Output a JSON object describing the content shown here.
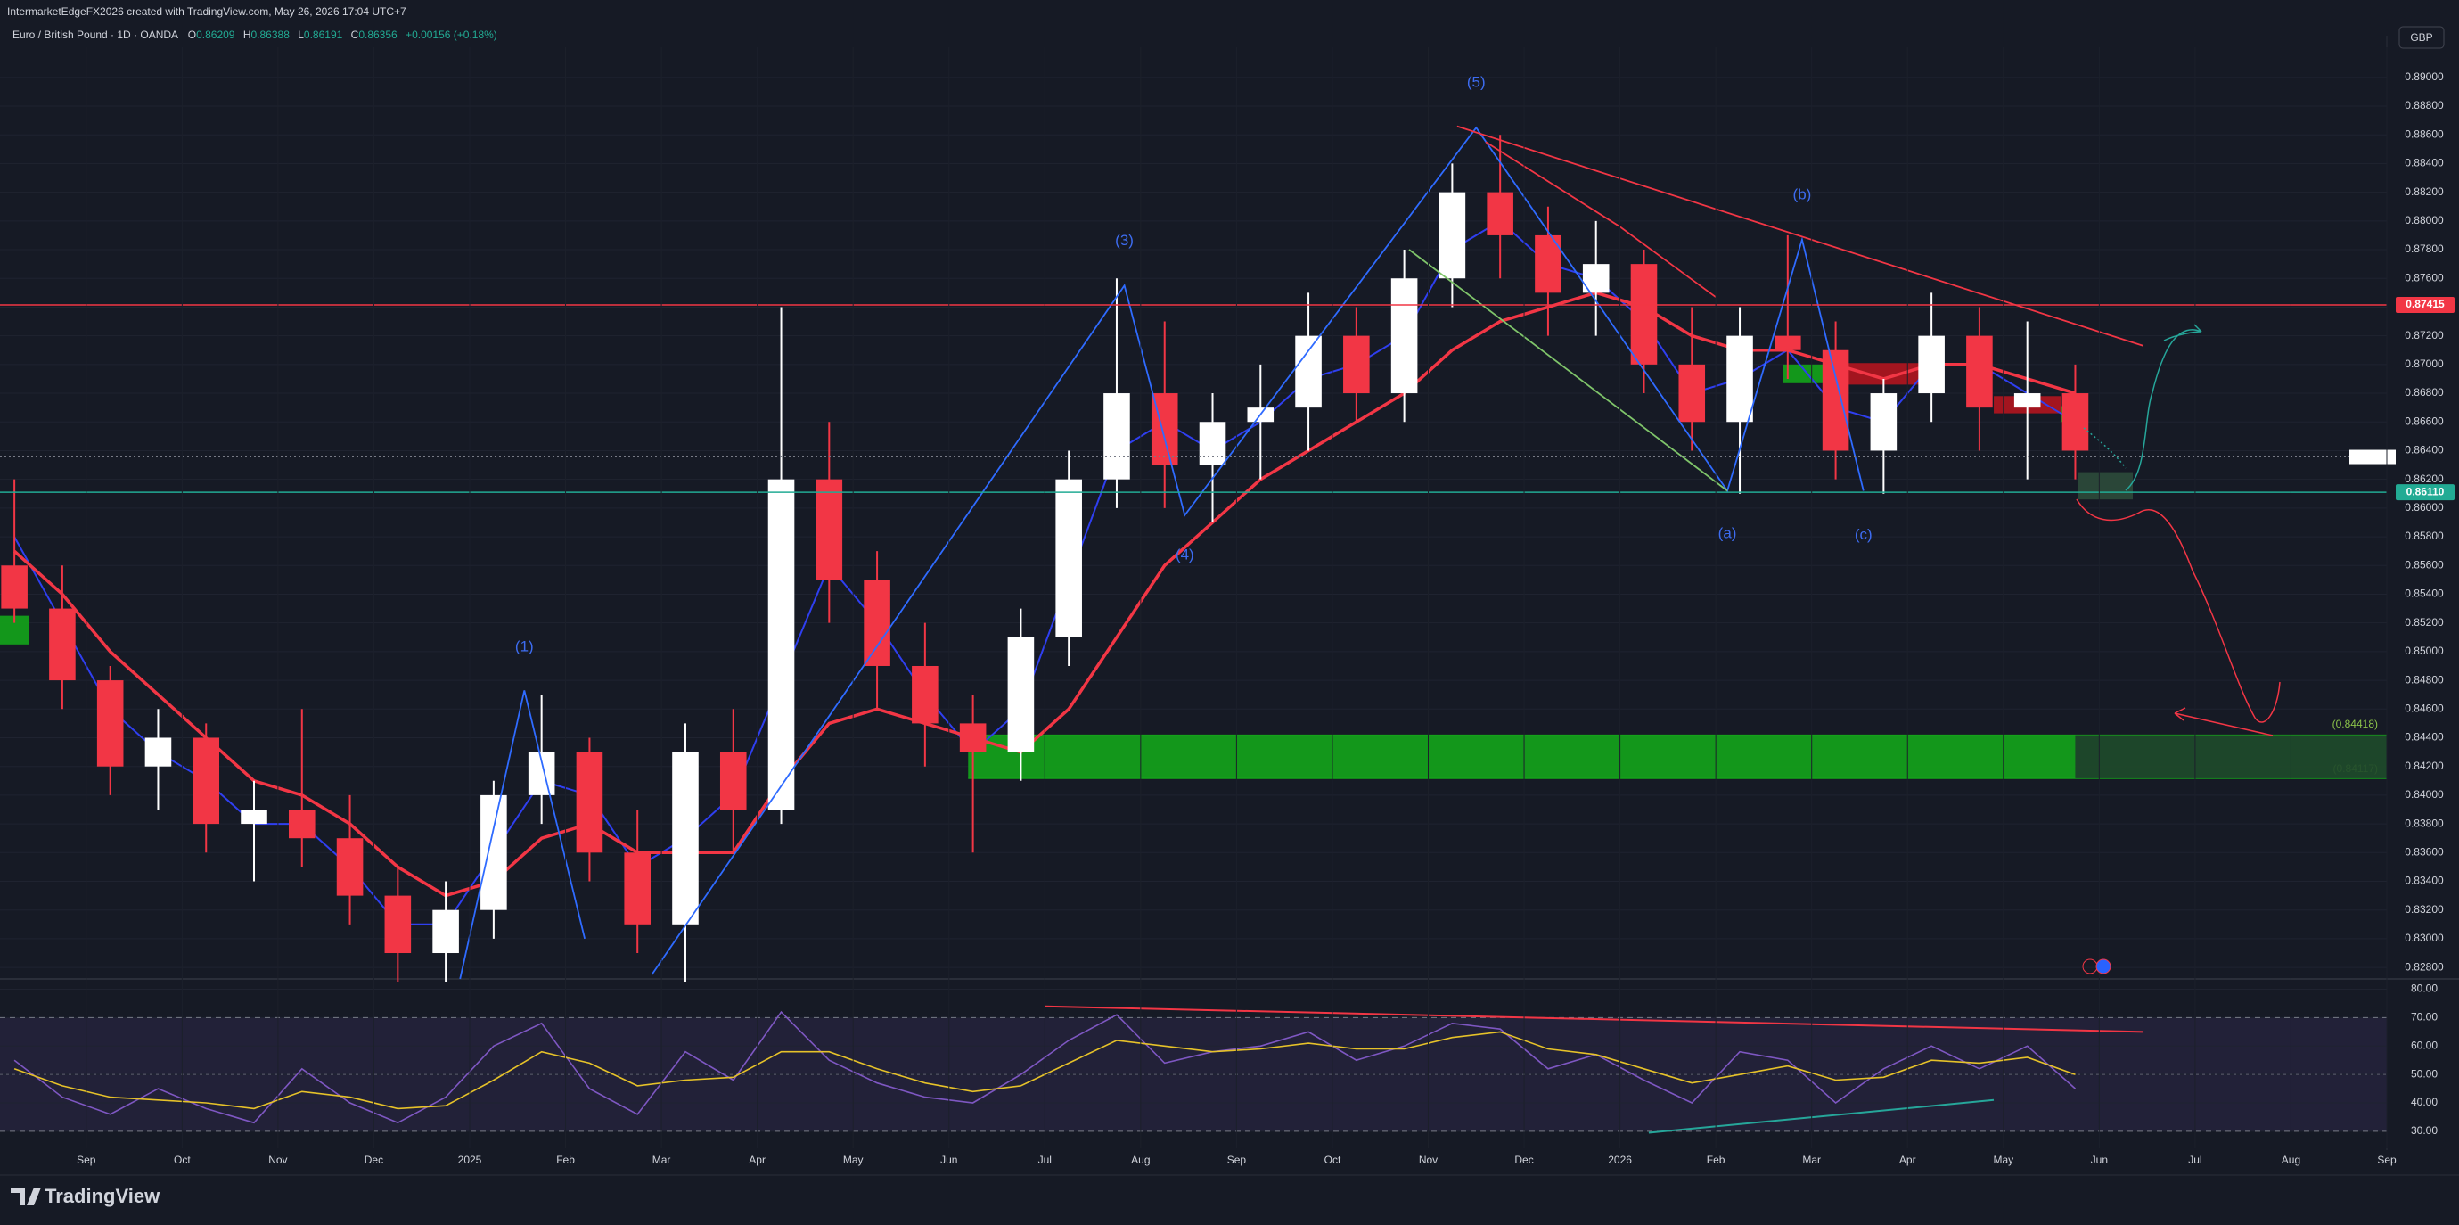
{
  "header": {
    "credit": "IntermarketEdgeFX2026 created with TradingView.com, May 26, 2026 17:04 UTC+7",
    "symbol": "Euro / British Pound · 1D · OANDA",
    "ohlc": [
      {
        "key": "O",
        "value": "0.86209"
      },
      {
        "key": "H",
        "value": "0.86388"
      },
      {
        "key": "L",
        "value": "0.86191"
      },
      {
        "key": "C",
        "value": "0.86356"
      }
    ],
    "change": "+0.00156 (+0.18%)",
    "currency": "GBP"
  },
  "footer": {
    "brand": "TradingView"
  },
  "chart_data": [
    {
      "type": "candlestick",
      "up_color": "#ffffff",
      "down_color": "#f23645",
      "grid": true,
      "xlim": [
        0.1,
        25
      ],
      "ylim": [
        0.8272,
        0.8921
      ],
      "yticks": [
        {
          "value": 0.828,
          "label": "0.82800"
        },
        {
          "value": 0.83,
          "label": "0.83000"
        },
        {
          "value": 0.832,
          "label": "0.83200"
        },
        {
          "value": 0.834,
          "label": "0.83400"
        },
        {
          "value": 0.836,
          "label": "0.83600"
        },
        {
          "value": 0.838,
          "label": "0.83800"
        },
        {
          "value": 0.84,
          "label": "0.84000"
        },
        {
          "value": 0.842,
          "label": "0.84200"
        },
        {
          "value": 0.844,
          "label": "0.84400"
        },
        {
          "value": 0.846,
          "label": "0.84600"
        },
        {
          "value": 0.848,
          "label": "0.84800"
        },
        {
          "value": 0.85,
          "label": "0.85000"
        },
        {
          "value": 0.852,
          "label": "0.85200"
        },
        {
          "value": 0.854,
          "label": "0.85400"
        },
        {
          "value": 0.856,
          "label": "0.85600"
        },
        {
          "value": 0.858,
          "label": "0.85800"
        },
        {
          "value": 0.86,
          "label": "0.86000"
        },
        {
          "value": 0.862,
          "label": "0.86200"
        },
        {
          "value": 0.864,
          "label": "0.86400"
        },
        {
          "value": 0.866,
          "label": "0.86600"
        },
        {
          "value": 0.868,
          "label": "0.86800"
        },
        {
          "value": 0.87,
          "label": "0.87000"
        },
        {
          "value": 0.872,
          "label": "0.87200"
        },
        {
          "value": 0.874,
          "label": "0.87400"
        },
        {
          "value": 0.876,
          "label": "0.87600"
        },
        {
          "value": 0.878,
          "label": "0.87800"
        },
        {
          "value": 0.88,
          "label": "0.88000"
        },
        {
          "value": 0.882,
          "label": "0.88200"
        },
        {
          "value": 0.884,
          "label": "0.88400"
        },
        {
          "value": 0.886,
          "label": "0.88600"
        },
        {
          "value": 0.888,
          "label": "0.88800"
        },
        {
          "value": 0.89,
          "label": "0.89000"
        }
      ],
      "x": [
        0.25,
        0.75,
        1.25,
        1.75,
        2.25,
        2.75,
        3.25,
        3.75,
        4.25,
        4.75,
        5.25,
        5.75,
        6.25,
        6.75,
        7.25,
        7.75,
        8.25,
        8.75,
        9.25,
        9.75,
        10.25,
        10.75,
        11.25,
        11.75,
        12.25,
        12.75,
        13.25,
        13.75,
        14.25,
        14.75,
        15.25,
        15.75,
        16.25,
        16.75,
        17.25,
        17.75,
        18.25,
        18.75,
        19.25,
        19.75,
        20.25,
        20.75,
        21.25,
        21.75
      ],
      "open": [
        0.856,
        0.853,
        0.848,
        0.842,
        0.844,
        0.838,
        0.839,
        0.837,
        0.833,
        0.829,
        0.832,
        0.84,
        0.843,
        0.836,
        0.831,
        0.843,
        0.839,
        0.862,
        0.855,
        0.849,
        0.845,
        0.843,
        0.851,
        0.862,
        0.868,
        0.863,
        0.866,
        0.867,
        0.872,
        0.868,
        0.876,
        0.882,
        0.879,
        0.875,
        0.877,
        0.87,
        0.866,
        0.872,
        0.871,
        0.864,
        0.868,
        0.872,
        0.867,
        0.868
      ],
      "high": [
        0.862,
        0.856,
        0.849,
        0.846,
        0.845,
        0.841,
        0.846,
        0.84,
        0.835,
        0.834,
        0.841,
        0.847,
        0.844,
        0.839,
        0.845,
        0.846,
        0.874,
        0.866,
        0.857,
        0.852,
        0.847,
        0.853,
        0.864,
        0.876,
        0.873,
        0.868,
        0.87,
        0.875,
        0.874,
        0.878,
        0.884,
        0.886,
        0.881,
        0.88,
        0.878,
        0.874,
        0.874,
        0.879,
        0.873,
        0.869,
        0.875,
        0.874,
        0.873,
        0.87
      ],
      "low": [
        0.852,
        0.846,
        0.84,
        0.839,
        0.836,
        0.834,
        0.835,
        0.831,
        0.827,
        0.827,
        0.83,
        0.838,
        0.834,
        0.829,
        0.827,
        0.836,
        0.838,
        0.852,
        0.846,
        0.842,
        0.836,
        0.841,
        0.849,
        0.86,
        0.86,
        0.859,
        0.862,
        0.864,
        0.866,
        0.866,
        0.874,
        0.876,
        0.872,
        0.872,
        0.868,
        0.864,
        0.861,
        0.869,
        0.862,
        0.861,
        0.866,
        0.864,
        0.862,
        0.862
      ],
      "close": [
        0.853,
        0.848,
        0.842,
        0.844,
        0.838,
        0.839,
        0.837,
        0.833,
        0.829,
        0.832,
        0.84,
        0.843,
        0.836,
        0.831,
        0.843,
        0.839,
        0.862,
        0.855,
        0.849,
        0.845,
        0.843,
        0.851,
        0.862,
        0.868,
        0.863,
        0.866,
        0.867,
        0.872,
        0.868,
        0.876,
        0.882,
        0.879,
        0.875,
        0.877,
        0.87,
        0.866,
        0.872,
        0.871,
        0.864,
        0.868,
        0.872,
        0.867,
        0.868,
        0.864
      ],
      "series": [
        {
          "color": "#2f3ff0",
          "values": [
            0.858,
            0.852,
            0.846,
            0.843,
            0.841,
            0.838,
            0.838,
            0.835,
            0.831,
            0.831,
            0.836,
            0.841,
            0.84,
            0.835,
            0.837,
            0.84,
            0.848,
            0.856,
            0.852,
            0.847,
            0.843,
            0.846,
            0.855,
            0.864,
            0.866,
            0.864,
            0.866,
            0.869,
            0.87,
            0.872,
            0.878,
            0.88,
            0.877,
            0.876,
            0.873,
            0.868,
            0.869,
            0.871,
            0.867,
            0.866,
            0.87,
            0.87,
            0.868,
            0.866
          ]
        },
        {
          "color": "#f23645",
          "values": [
            0.857,
            0.854,
            0.85,
            0.847,
            0.844,
            0.841,
            0.84,
            0.838,
            0.835,
            0.833,
            0.834,
            0.837,
            0.838,
            0.836,
            0.836,
            0.836,
            0.841,
            0.845,
            0.846,
            0.845,
            0.844,
            0.843,
            0.846,
            0.851,
            0.856,
            0.859,
            0.862,
            0.864,
            0.866,
            0.868,
            0.871,
            0.873,
            0.874,
            0.875,
            0.874,
            0.872,
            0.871,
            0.871,
            0.87,
            0.869,
            0.87,
            0.87,
            0.869,
            0.868
          ]
        }
      ],
      "last_price": 0.86356,
      "levels": [
        {
          "value": 0.87415,
          "label": "0.87415",
          "color": "#f23645"
        },
        {
          "value": 0.8611,
          "label": "0.86110",
          "color": "#22ab94"
        }
      ],
      "zones": [
        {
          "from": 10.2,
          "to": 21.75,
          "low": 0.84117,
          "high": 0.84418,
          "color": "#14a21a",
          "high_label": "(0.84418)",
          "low_label": "(0.84117)"
        },
        {
          "from": 21.75,
          "to": 25,
          "low": 0.84117,
          "high": 0.84418,
          "color": "#1e4a2a"
        },
        {
          "from": 0.1,
          "to": 0.4,
          "low": 0.8505,
          "high": 0.8525,
          "color": "#14a21a"
        },
        {
          "from": 18.7,
          "to": 19.3,
          "low": 0.8687,
          "high": 0.87,
          "color": "#14a21a"
        },
        {
          "from": 19.3,
          "to": 20.2,
          "low": 0.8686,
          "high": 0.8701,
          "color": "#b0151e"
        },
        {
          "from": 20.9,
          "to": 21.6,
          "low": 0.8666,
          "high": 0.8678,
          "color": "#b0151e"
        },
        {
          "from": 21.6,
          "to": 21.78,
          "low": 0.866,
          "high": 0.8671,
          "color": "#14a21a"
        },
        {
          "from": 21.78,
          "to": 22.35,
          "low": 0.8606,
          "high": 0.8625,
          "color": "#2d4a3a"
        }
      ],
      "trendlines": [
        {
          "color": "#2f6bff",
          "x": [
            4.9,
            5.57,
            6.2
          ],
          "y": [
            0.8272,
            0.8473,
            0.83
          ]
        },
        {
          "color": "#2f6bff",
          "x": [
            6.9,
            11.83,
            12.46,
            15.5,
            18.12,
            18.9,
            19.54
          ],
          "y": [
            0.8275,
            0.8755,
            0.8595,
            0.8865,
            0.8612,
            0.8787,
            0.8612
          ]
        },
        {
          "color": "#f23645",
          "x": [
            15.3,
            22.46
          ],
          "y": [
            0.8866,
            0.8713
          ]
        },
        {
          "color": "#f23645",
          "x": [
            15.6,
            17.0,
            18.0
          ],
          "y": [
            0.8855,
            0.8796,
            0.8747
          ]
        },
        {
          "color": "#7fc46a",
          "x": [
            14.8,
            18.12
          ],
          "y": [
            0.878,
            0.8612
          ]
        }
      ],
      "annotations": [
        {
          "text": "(1)",
          "x": 5.57,
          "y": 0.8503
        },
        {
          "text": "(3)",
          "x": 11.83,
          "y": 0.8786
        },
        {
          "text": "(4)",
          "x": 12.46,
          "y": 0.8567
        },
        {
          "text": "(5)",
          "x": 15.5,
          "y": 0.8896
        },
        {
          "text": "(a)",
          "x": 18.12,
          "y": 0.8582
        },
        {
          "text": "(b)",
          "x": 18.9,
          "y": 0.8818
        },
        {
          "text": "(c)",
          "x": 19.54,
          "y": 0.8581
        }
      ]
    },
    {
      "type": "line",
      "grid": true,
      "xlim": [
        0.1,
        25
      ],
      "ylim": [
        24,
        83
      ],
      "yticks": [
        {
          "value": 30,
          "label": "30.00"
        },
        {
          "value": 40,
          "label": "40.00"
        },
        {
          "value": 50,
          "label": "50.00"
        },
        {
          "value": 60,
          "label": "60.00"
        },
        {
          "value": 70,
          "label": "70.00"
        },
        {
          "value": 80,
          "label": "80.00"
        }
      ],
      "xticks": [
        {
          "value": 1,
          "label": "Sep"
        },
        {
          "value": 2,
          "label": "Oct"
        },
        {
          "value": 3,
          "label": "Nov"
        },
        {
          "value": 4,
          "label": "Dec"
        },
        {
          "value": 5,
          "label": "2025"
        },
        {
          "value": 6,
          "label": "Feb"
        },
        {
          "value": 7,
          "label": "Mar"
        },
        {
          "value": 8,
          "label": "Apr"
        },
        {
          "value": 9,
          "label": "May"
        },
        {
          "value": 10,
          "label": "Jun"
        },
        {
          "value": 11,
          "label": "Jul"
        },
        {
          "value": 12,
          "label": "Aug"
        },
        {
          "value": 13,
          "label": "Sep"
        },
        {
          "value": 14,
          "label": "Oct"
        },
        {
          "value": 15,
          "label": "Nov"
        },
        {
          "value": 16,
          "label": "Dec"
        },
        {
          "value": 17,
          "label": "2026"
        },
        {
          "value": 18,
          "label": "Feb"
        },
        {
          "value": 19,
          "label": "Mar"
        },
        {
          "value": 20,
          "label": "Apr"
        },
        {
          "value": 21,
          "label": "May"
        },
        {
          "value": 22,
          "label": "Jun"
        },
        {
          "value": 23,
          "label": "Jul"
        },
        {
          "value": 24,
          "label": "Aug"
        },
        {
          "value": 25,
          "label": "Sep"
        }
      ],
      "bands": [
        30,
        70
      ],
      "band_color": "#7e57c2",
      "midline": 50,
      "x": [
        0.25,
        0.75,
        1.25,
        1.75,
        2.25,
        2.75,
        3.25,
        3.75,
        4.25,
        4.75,
        5.25,
        5.75,
        6.25,
        6.75,
        7.25,
        7.75,
        8.25,
        8.75,
        9.25,
        9.75,
        10.25,
        10.75,
        11.25,
        11.75,
        12.25,
        12.75,
        13.25,
        13.75,
        14.25,
        14.75,
        15.25,
        15.75,
        16.25,
        16.75,
        17.25,
        17.75,
        18.25,
        18.75,
        19.25,
        19.75,
        20.25,
        20.75,
        21.25,
        21.75
      ],
      "series": [
        {
          "color": "#7e57c2",
          "values": [
            55,
            42,
            36,
            45,
            38,
            33,
            52,
            40,
            33,
            42,
            60,
            68,
            45,
            36,
            58,
            48,
            72,
            55,
            47,
            42,
            40,
            50,
            62,
            71,
            54,
            58,
            60,
            65,
            55,
            60,
            68,
            66,
            52,
            57,
            48,
            40,
            58,
            55,
            40,
            52,
            60,
            52,
            60,
            45
          ]
        },
        {
          "color": "#e6c229",
          "values": [
            52,
            46,
            42,
            41,
            40,
            38,
            44,
            42,
            38,
            39,
            48,
            58,
            54,
            46,
            48,
            49,
            58,
            58,
            52,
            47,
            44,
            46,
            54,
            62,
            60,
            58,
            59,
            61,
            59,
            59,
            63,
            65,
            59,
            57,
            52,
            47,
            50,
            53,
            48,
            49,
            55,
            54,
            56,
            50
          ]
        }
      ],
      "trendlines": [
        {
          "color": "#f23645",
          "x": [
            11.0,
            22.46
          ],
          "y": [
            74,
            65
          ]
        },
        {
          "color": "#26a69a",
          "x": [
            17.3,
            20.9
          ],
          "y": [
            29.5,
            41
          ]
        }
      ]
    }
  ]
}
